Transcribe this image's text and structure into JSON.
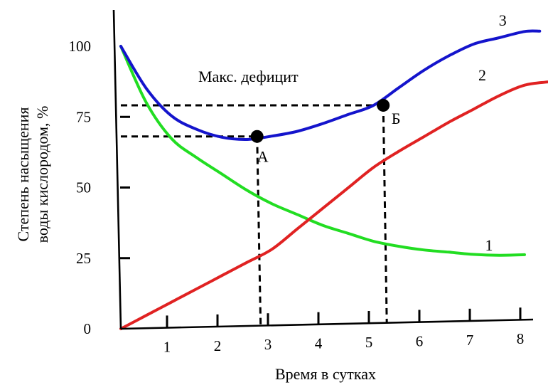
{
  "chart_data": {
    "type": "line",
    "title": "",
    "xlabel": "Время в сутках",
    "ylabel_lines": [
      "Степень насыщения",
      "воды кислородом, %"
    ],
    "xlim": [
      0,
      8.5
    ],
    "ylim": [
      0,
      100
    ],
    "x_ticks": [
      1,
      2,
      3,
      4,
      5,
      6,
      7,
      8
    ],
    "y_ticks": [
      0,
      25,
      50,
      75,
      100
    ],
    "grid": false,
    "colors": {
      "1": "#22dd22",
      "2": "#e02222",
      "3": "#1414cc",
      "guides": "#000000"
    },
    "series": [
      {
        "name": "1",
        "x": [
          0,
          0.5,
          1,
          1.5,
          2,
          2.5,
          3,
          3.5,
          4,
          4.5,
          5,
          5.5,
          6,
          6.5,
          7,
          7.5,
          8
        ],
        "y": [
          100,
          80,
          67,
          60,
          54,
          48,
          43,
          39,
          35,
          32,
          29,
          27,
          25.5,
          24.5,
          23.5,
          23,
          23
        ]
      },
      {
        "name": "2",
        "x": [
          0,
          0.5,
          1,
          1.5,
          2,
          2.5,
          3,
          3.5,
          4,
          4.5,
          5,
          5.5,
          6,
          6.5,
          7,
          7.5,
          8,
          8.5
        ],
        "y": [
          0,
          4.5,
          9,
          13.5,
          18,
          22.5,
          27,
          34,
          41,
          48,
          55,
          60.5,
          65.5,
          70.5,
          75,
          79.5,
          83,
          84
        ]
      },
      {
        "name": "3",
        "x": [
          0,
          0.5,
          1,
          1.5,
          2,
          2.5,
          3,
          3.5,
          4,
          4.5,
          5,
          5.5,
          6,
          6.5,
          7,
          7.5,
          8,
          8.3
        ],
        "y": [
          100,
          85,
          75,
          70,
          67,
          66,
          67,
          68.5,
          71,
          74,
          77,
          83,
          89,
          94,
          98,
          100,
          102,
          102
        ]
      }
    ],
    "points": [
      {
        "label": "А",
        "x": 2.7,
        "y": 67
      },
      {
        "label": "Б",
        "x": 5.2,
        "y": 77
      }
    ],
    "annotations": [
      {
        "text": "Макс. дефицит"
      }
    ]
  }
}
